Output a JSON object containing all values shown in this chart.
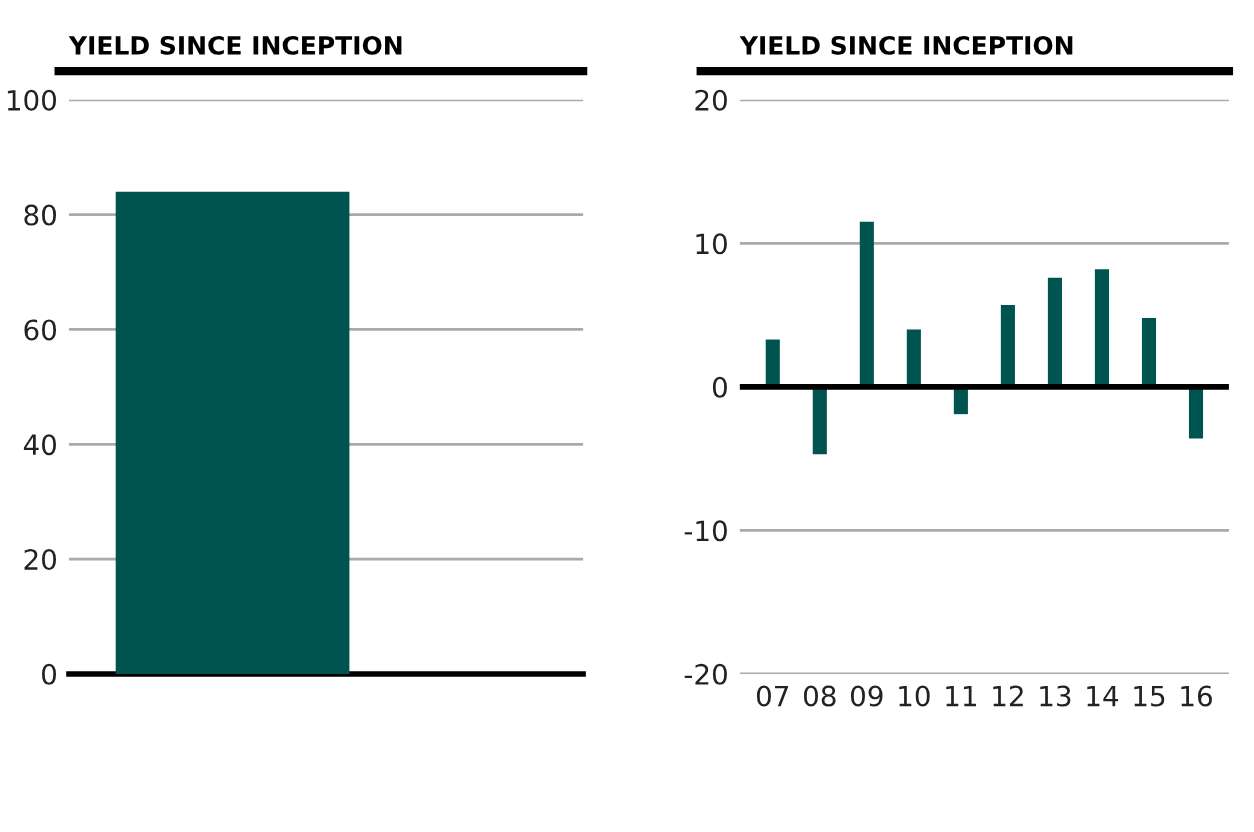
{
  "chart_data": [
    {
      "type": "bar",
      "title": "YIELD SINCE INCEPTION",
      "categories": [
        null
      ],
      "series": [
        {
          "color": "#00544f",
          "values": [
            84
          ]
        }
      ],
      "ylim": [
        0,
        100
      ],
      "yticks": [
        0,
        20,
        40,
        60,
        80,
        100
      ],
      "grid": "y",
      "tick_labels": "y"
    },
    {
      "type": "bar",
      "title": "YIELD SINCE INCEPTION",
      "categories": [
        "07",
        "08",
        "09",
        "10",
        "11",
        "12",
        "13",
        "14",
        "15",
        "16"
      ],
      "series": [
        {
          "color": "#00544f",
          "values": [
            3.3,
            -4.7,
            11.5,
            4.0,
            -1.9,
            5.7,
            7.6,
            8.2,
            4.8,
            -3.6
          ]
        }
      ],
      "ylim": [
        -20,
        20
      ],
      "yticks": [
        -20,
        -10,
        0,
        10,
        20
      ],
      "grid": "y"
    }
  ]
}
